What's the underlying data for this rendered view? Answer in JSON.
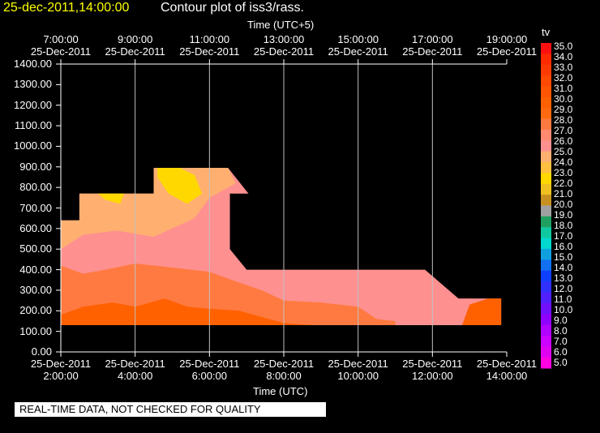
{
  "header": {
    "date": "25-dec-2011,14:00:00",
    "title": "Contour plot of iss3/rass."
  },
  "footer": {
    "quality_note": "REAL-TIME DATA, NOT CHECKED FOR QUALITY"
  },
  "chart_data": {
    "type": "contour",
    "title": "Contour plot of iss3/rass.",
    "xlabel": "Time (UTC)",
    "xlabel_top": "Time (UTC+5)",
    "ylabel": "",
    "ylim": [
      0,
      1400
    ],
    "xlim": [
      "25-Dec-2011 2:00:00",
      "25-Dec-2011 14:00:00"
    ],
    "x_ticks_bottom": [
      {
        "date": "25-Dec-2011",
        "time": "2:00:00"
      },
      {
        "date": "25-Dec-2011",
        "time": "4:00:00"
      },
      {
        "date": "25-Dec-2011",
        "time": "6:00:00"
      },
      {
        "date": "25-Dec-2011",
        "time": "8:00:00"
      },
      {
        "date": "25-Dec-2011",
        "time": "10:00:00"
      },
      {
        "date": "25-Dec-2011",
        "time": "12:00:00"
      },
      {
        "date": "25-Dec-2011",
        "time": "14:00:00"
      }
    ],
    "x_ticks_top": [
      {
        "time": "7:00:00",
        "date": "25-Dec-2011"
      },
      {
        "time": "9:00:00",
        "date": "25-Dec-2011"
      },
      {
        "time": "11:00:00",
        "date": "25-Dec-2011"
      },
      {
        "time": "13:00:00",
        "date": "25-Dec-2011"
      },
      {
        "time": "15:00:00",
        "date": "25-Dec-2011"
      },
      {
        "time": "17:00:00",
        "date": "25-Dec-2011"
      },
      {
        "time": "19:00:00",
        "date": "25-Dec-2011"
      }
    ],
    "y_ticks": [
      "0.00",
      "100.00",
      "200.00",
      "300.00",
      "400.00",
      "500.00",
      "600.00",
      "700.00",
      "800.00",
      "900.00",
      "1000.00",
      "1100.00",
      "1200.00",
      "1300.00",
      "1400.00"
    ],
    "colorbar": {
      "label": "tv",
      "levels": [
        "35.0",
        "34.0",
        "33.0",
        "32.0",
        "31.0",
        "30.0",
        "29.0",
        "28.0",
        "27.0",
        "26.0",
        "25.0",
        "24.0",
        "23.0",
        "22.0",
        "21.0",
        "20.0",
        "19.0",
        "18.0",
        "17.0",
        "16.0",
        "15.0",
        "14.0",
        "13.0",
        "12.0",
        "11.0",
        "10.0",
        "9.0",
        "8.0",
        "7.0",
        "6.0",
        "5.0"
      ],
      "colors": [
        "#ff1010",
        "#ff2a00",
        "#ff3a00",
        "#ff4800",
        "#ff5500",
        "#ff6000",
        "#ff6a10",
        "#ff7a40",
        "#ff8a70",
        "#ff9090",
        "#ffb070",
        "#ffc040",
        "#ffd800",
        "#f0c020",
        "#c89020",
        "#a0a0a0",
        "#20a060",
        "#10c8a0",
        "#00d8d0",
        "#10a0e0",
        "#1070f0",
        "#1040ff",
        "#3030ff",
        "#5020ff",
        "#7010ff",
        "#9000ff",
        "#b000ff",
        "#cc00ff",
        "#e000f0",
        "#ff00e0"
      ]
    },
    "regions": [
      {
        "level": "24.0",
        "color": "#ffb070",
        "time_range": [
          "2:00:00",
          "7:00:00"
        ],
        "alt_range": [
          500,
          900
        ]
      },
      {
        "level": "23.0",
        "color": "#ffd800",
        "time_range": [
          "3:00:00",
          "6:00:00"
        ],
        "alt_range": [
          700,
          900
        ]
      },
      {
        "level": "26.0",
        "color": "#ff9090",
        "time_range": [
          "2:00:00",
          "12:40:00"
        ],
        "alt_range": [
          130,
          900
        ]
      },
      {
        "level": "27.0",
        "color": "#ff7a40",
        "time_range": [
          "2:00:00",
          "9:00:00"
        ],
        "alt_range": [
          130,
          400
        ]
      },
      {
        "level": "29.0",
        "color": "#ff6000",
        "time_range": [
          "2:00:00",
          "13:50:00"
        ],
        "alt_range": [
          130,
          280
        ]
      }
    ],
    "grid": true
  }
}
